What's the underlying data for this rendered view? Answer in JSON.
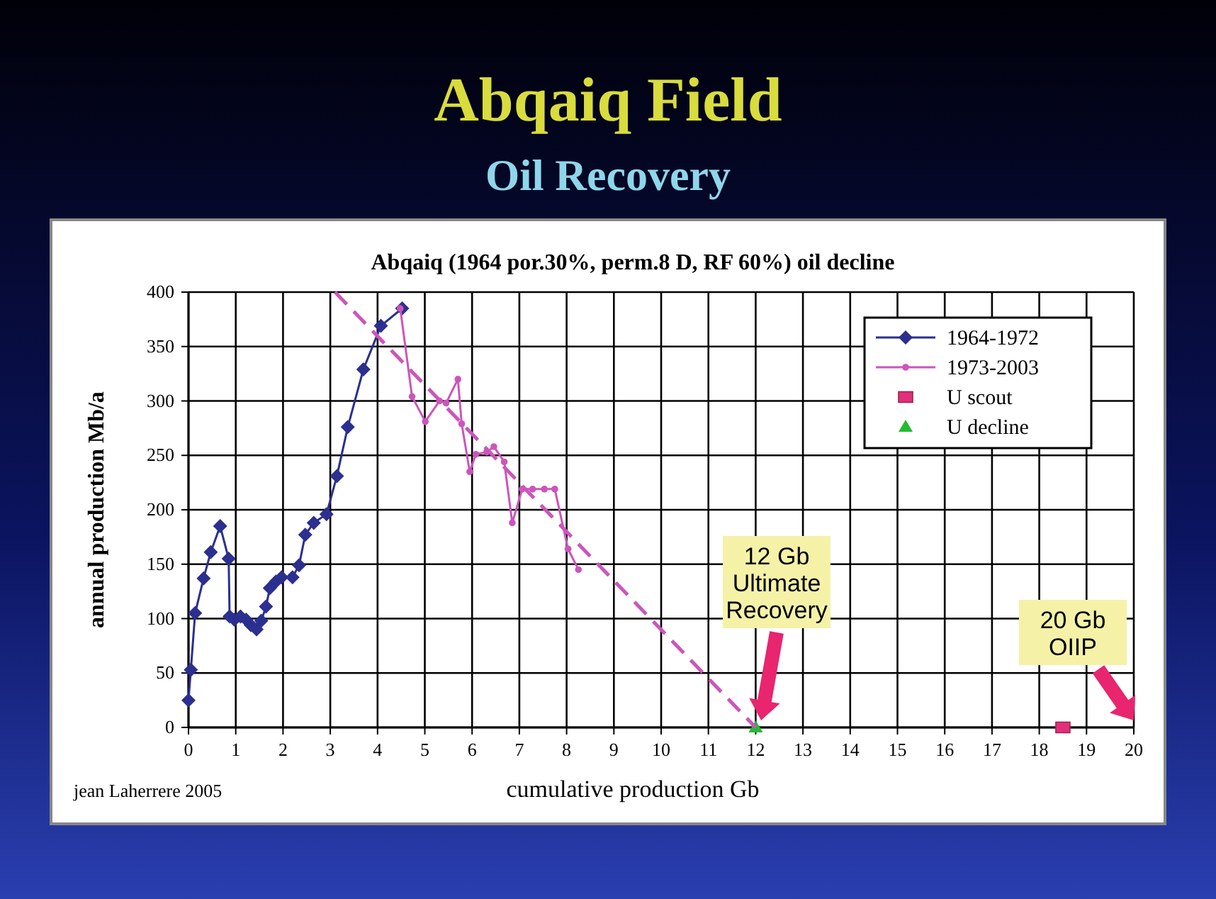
{
  "chart_data": {
    "type": "line",
    "title": "Abqaiq Field",
    "subtitle": "Oil Recovery",
    "xlabel": "cumulative production Gb",
    "ylabel": "annual production Mb/a",
    "annotations": [
      "Abqaiq (1964 por.30%, perm.8 D, RF 60%) oil decline",
      "jean Laherrere 2005",
      "12 Gb\nUltimate\nRecovery",
      "20 Gb\nOIIP"
    ],
    "xlim": [
      0,
      20
    ],
    "xticks": [
      0,
      1,
      2,
      3,
      4,
      5,
      6,
      7,
      8,
      9,
      10,
      11,
      12,
      13,
      14,
      15,
      16,
      17,
      18,
      19,
      20
    ],
    "ylim": [
      0,
      400
    ],
    "yticks": [
      0,
      50,
      100,
      150,
      200,
      250,
      300,
      350,
      400
    ],
    "grid": true,
    "legend": "top right",
    "series": [
      {
        "name": "1964-1972",
        "color": "#2b2f8f",
        "marker": "diamond",
        "x": [
          0,
          0.05,
          0.14,
          0.32,
          0.47,
          0.67,
          0.85,
          0.87,
          0.97,
          1.1,
          1.22,
          1.32,
          1.44,
          1.54,
          1.64,
          1.72,
          1.85,
          1.97,
          2.2,
          2.34,
          2.47,
          2.65,
          2.92,
          3.14,
          3.37,
          3.7,
          4.07,
          4.52
        ],
        "values": [
          25,
          53,
          105,
          137,
          161,
          185,
          155,
          102,
          99,
          102,
          99,
          94,
          90,
          98,
          111,
          128,
          134,
          138,
          138,
          149,
          177,
          188,
          196,
          231,
          276,
          329,
          369,
          385
        ]
      },
      {
        "name": "1973-2003",
        "color": "#cc55bb",
        "marker": "circle",
        "x": [
          4.48,
          4.73,
          5.01,
          5.31,
          5.45,
          5.7,
          5.78,
          5.95,
          6.08,
          6.31,
          6.46,
          6.68,
          6.85,
          7.06,
          7.28,
          7.53,
          7.75,
          8.03,
          8.25
        ],
        "values": [
          385,
          304,
          281,
          300,
          298,
          320,
          279,
          235,
          251,
          253,
          258,
          244,
          188,
          219,
          219,
          219,
          219,
          164,
          145
        ]
      },
      {
        "name": "U scout",
        "type": "scatter",
        "color": "#e0307a",
        "marker": "square",
        "x": [
          18.5
        ],
        "values": [
          0
        ]
      },
      {
        "name": "U decline",
        "type": "scatter",
        "color": "#22bb33",
        "marker": "triangle",
        "x": [
          12
        ],
        "values": [
          0
        ]
      },
      {
        "type": "line",
        "color": "#cc55bb",
        "marker": "none",
        "line_style": "dashed",
        "x": [
          3.1,
          12
        ],
        "values": [
          400,
          0
        ]
      }
    ]
  }
}
